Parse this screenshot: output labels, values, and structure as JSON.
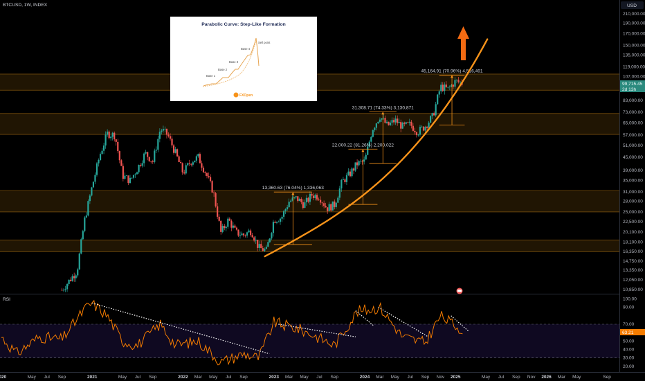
{
  "header": {
    "symbol": "BTCUSD, 1W, INDEX",
    "currency": "USD"
  },
  "price_axis_labels": [
    "210,000.00",
    "190,000.00",
    "170,000.00",
    "150,000.00",
    "135,000.00",
    "119,000.00",
    "107,000.00",
    "95,000.00",
    "83,000.00",
    "73,000.00",
    "65,000.00",
    "57,000.00",
    "51,000.00",
    "45,000.00",
    "39,000.00",
    "35,000.00",
    "31,000.00",
    "28,000.00",
    "25,000.00",
    "22,500.00",
    "20,100.00",
    "18,100.00",
    "16,350.00",
    "14,750.00",
    "13,350.00",
    "12,050.00",
    "10,850.00"
  ],
  "price_tags": {
    "current": "99,715.45",
    "countdown": "2d 13h"
  },
  "rsi": {
    "title": "RSI",
    "axis_labels": [
      "100.00",
      "90.00",
      "70.00",
      "60.00",
      "50.00",
      "40.00",
      "30.00",
      "20.00"
    ],
    "value_tag": "63.21"
  },
  "time_axis_labels": [
    "2020",
    "May",
    "Jul",
    "Sep",
    "2021",
    "May",
    "Jul",
    "Sep",
    "2022",
    "Mar",
    "May",
    "Jul",
    "Sep",
    "2023",
    "Mar",
    "May",
    "Jul",
    "Sep",
    "2024",
    "Mar",
    "May",
    "Jul",
    "Sep",
    "Nov",
    "2025",
    "May",
    "Jul",
    "Sep",
    "Nov",
    "2026",
    "Mar",
    "May",
    "Sep"
  ],
  "measurements": [
    "13,360.63 (76.04%) 1,336,063",
    "22,000.22 (81.26%) 2,200,022",
    "31,308.71 (74.33%) 3,130,871",
    "45,164.91 (70.96%) 4,516,491"
  ],
  "inset": {
    "title": "Parabolic Curve: Step-Like Formation",
    "bases": [
      "Base 1",
      "Base 2",
      "Base 3",
      "Base 4"
    ],
    "sell_label": "Sell point",
    "logo": "FXOpen"
  },
  "colors": {
    "up": "#26a69a",
    "down": "#ef5350",
    "curve": "#f7931a",
    "zone": "#f7a21b",
    "rsi_line": "#f57c00"
  },
  "chart_data": {
    "type": "candlestick",
    "instrument": "BTCUSD",
    "interval": "1W",
    "y_scale": "log",
    "y_range": [
      10300,
      235000
    ],
    "x_range": [
      "2020-01",
      "2026-10"
    ],
    "series_close": [
      [
        "2020-09",
        10800
      ],
      [
        "2020-11",
        13300
      ],
      [
        "2020-12",
        23000
      ],
      [
        "2021-01",
        33000
      ],
      [
        "2021-02",
        46000
      ],
      [
        "2021-03",
        58000
      ],
      [
        "2021-04",
        57000
      ],
      [
        "2021-05",
        37000
      ],
      [
        "2021-06",
        35000
      ],
      [
        "2021-07",
        40000
      ],
      [
        "2021-08",
        47000
      ],
      [
        "2021-09",
        43000
      ],
      [
        "2021-10",
        61000
      ],
      [
        "2021-11",
        57000
      ],
      [
        "2021-12",
        47000
      ],
      [
        "2022-01",
        38000
      ],
      [
        "2022-02",
        43000
      ],
      [
        "2022-03",
        45000
      ],
      [
        "2022-04",
        38000
      ],
      [
        "2022-05",
        31000
      ],
      [
        "2022-06",
        20000
      ],
      [
        "2022-07",
        23000
      ],
      [
        "2022-08",
        20000
      ],
      [
        "2022-09",
        19500
      ],
      [
        "2022-10",
        20500
      ],
      [
        "2022-11",
        17000
      ],
      [
        "2022-12",
        16500
      ],
      [
        "2023-01",
        23000
      ],
      [
        "2023-02",
        23500
      ],
      [
        "2023-03",
        28000
      ],
      [
        "2023-04",
        29000
      ],
      [
        "2023-05",
        27000
      ],
      [
        "2023-06",
        30000
      ],
      [
        "2023-07",
        29500
      ],
      [
        "2023-08",
        26000
      ],
      [
        "2023-09",
        27000
      ],
      [
        "2023-10",
        34500
      ],
      [
        "2023-11",
        37500
      ],
      [
        "2023-12",
        42000
      ],
      [
        "2024-01",
        43000
      ],
      [
        "2024-02",
        61000
      ],
      [
        "2024-03",
        70000
      ],
      [
        "2024-04",
        63000
      ],
      [
        "2024-05",
        67000
      ],
      [
        "2024-06",
        62500
      ],
      [
        "2024-07",
        64000
      ],
      [
        "2024-08",
        59000
      ],
      [
        "2024-09",
        63000
      ],
      [
        "2024-10",
        70000
      ],
      [
        "2024-11",
        96000
      ],
      [
        "2024-12",
        93500
      ],
      [
        "2025-01",
        102000
      ],
      [
        "2025-02",
        99700
      ]
    ],
    "rsi_values": [
      [
        "2020-01",
        55
      ],
      [
        "2020-03",
        35
      ],
      [
        "2020-06",
        55
      ],
      [
        "2020-09",
        52
      ],
      [
        "2020-12",
        88
      ],
      [
        "2021-01",
        95
      ],
      [
        "2021-03",
        80
      ],
      [
        "2021-05",
        50
      ],
      [
        "2021-07",
        45
      ],
      [
        "2021-10",
        70
      ],
      [
        "2021-12",
        45
      ],
      [
        "2022-03",
        50
      ],
      [
        "2022-06",
        25
      ],
      [
        "2022-09",
        35
      ],
      [
        "2022-11",
        30
      ],
      [
        "2023-01",
        72
      ],
      [
        "2023-04",
        65
      ],
      [
        "2023-06",
        58
      ],
      [
        "2023-09",
        45
      ],
      [
        "2023-12",
        85
      ],
      [
        "2024-03",
        90
      ],
      [
        "2024-06",
        55
      ],
      [
        "2024-09",
        48
      ],
      [
        "2024-11",
        80
      ],
      [
        "2025-01",
        68
      ],
      [
        "2025-02",
        63
      ]
    ],
    "rsi_levels": [
      70,
      30
    ],
    "support_zones": [
      [
        16300,
        18500
      ],
      [
        25000,
        31500
      ],
      [
        57500,
        72000
      ],
      [
        92500,
        110000
      ]
    ],
    "parabolic_curve": "orange log-parabolic support rising from 2022-11 (~15,500) to above 150,000 by 2025-05",
    "measurements": [
      {
        "label": "13,360.63 (76.04%) 1,336,063",
        "from": 17600,
        "to": 30960
      },
      {
        "label": "22,000.22 (81.26%) 2,200,022",
        "from": 27100,
        "to": 49100
      },
      {
        "label": "31,308.71 (74.33%) 3,130,871",
        "from": 42100,
        "to": 73400
      },
      {
        "label": "45,164.91 (70.96%) 4,516,491",
        "from": 63600,
        "to": 108800
      }
    ]
  }
}
